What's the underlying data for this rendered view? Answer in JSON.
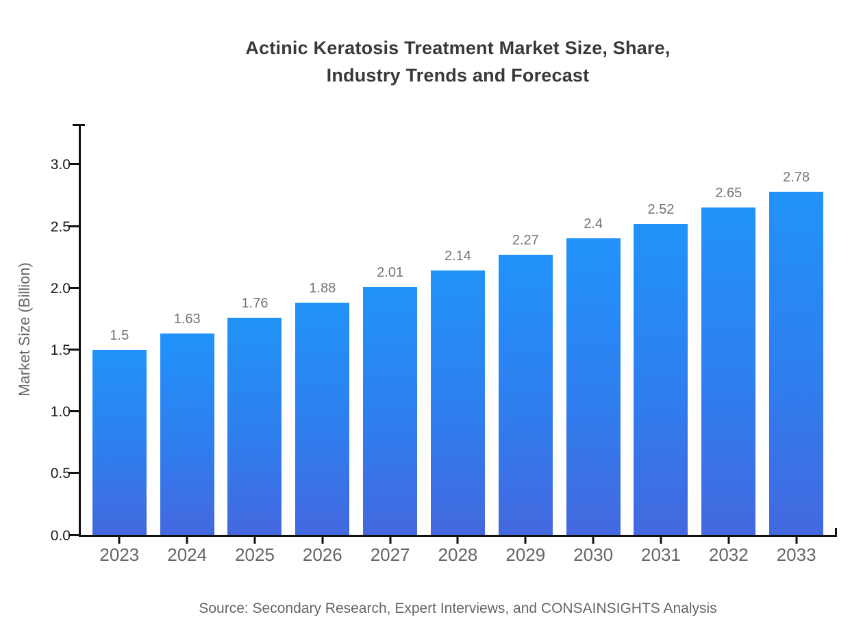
{
  "chart_data": {
    "type": "bar",
    "title_line1": "Actinic Keratosis Treatment Market Size, Share,",
    "title_line2": "Industry Trends and Forecast",
    "ylabel": "Market Size (Billion)",
    "xlabel": "",
    "categories": [
      "2023",
      "2024",
      "2025",
      "2026",
      "2027",
      "2028",
      "2029",
      "2030",
      "2031",
      "2032",
      "2033"
    ],
    "values": [
      1.5,
      1.63,
      1.76,
      1.88,
      2.01,
      2.14,
      2.27,
      2.4,
      2.52,
      2.65,
      2.78
    ],
    "value_labels": [
      "1.5",
      "1.63",
      "1.76",
      "1.88",
      "2.01",
      "2.14",
      "2.27",
      "2.4",
      "2.52",
      "2.65",
      "2.78"
    ],
    "ytick_values": [
      0.0,
      0.5,
      1.0,
      1.5,
      2.0,
      2.5,
      3.0
    ],
    "ytick_labels": [
      "0.0",
      "0.5",
      "1.0",
      "1.5",
      "2.0",
      "2.5",
      "3.0"
    ],
    "ylim": [
      0,
      3.327
    ],
    "grid": false,
    "legend": "none",
    "source_note": "Source: Secondary Research, Expert Interviews, and CONSAINSIGHTS Analysis",
    "colors": {
      "bar_gradient_top": "#2193f9",
      "bar_gradient_bottom": "#4468df",
      "axis": "#111111",
      "title_text": "#37393b",
      "ytick_text": "#1a1a1a",
      "category_text": "#666666",
      "value_label_text": "#757575",
      "ylabel_text": "#666666",
      "source_text": "#666666",
      "background": "#ffffff"
    }
  }
}
